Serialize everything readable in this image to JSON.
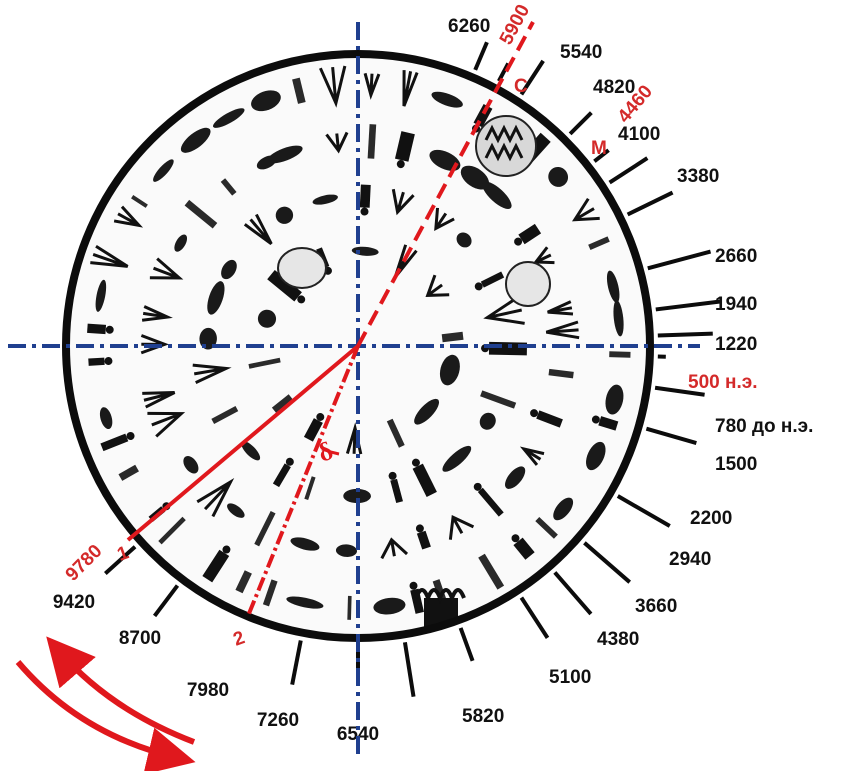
{
  "colors": {
    "ring": "#0c0c0c",
    "axis_blue": "#1f3f8f",
    "accent_red": "#e0181d",
    "label_red": "#d42a2a",
    "label_black": "#111111"
  },
  "center_symbol": "δ",
  "dial_labels": [
    {
      "text": "6260",
      "color": "black"
    },
    {
      "text": "5900",
      "color": "red"
    },
    {
      "text": "5540",
      "color": "black"
    },
    {
      "text": "4820",
      "color": "black"
    },
    {
      "text": "4460",
      "color": "red"
    },
    {
      "text": "4100",
      "color": "black"
    },
    {
      "text": "3380",
      "color": "black"
    },
    {
      "text": "2660",
      "color": "black"
    },
    {
      "text": "1940",
      "color": "black"
    },
    {
      "text": "1220",
      "color": "black"
    },
    {
      "text": "500 н.э.",
      "color": "red"
    },
    {
      "text": "780 до н.э.",
      "color": "black"
    },
    {
      "text": "1500",
      "color": "black"
    },
    {
      "text": "2200",
      "color": "black"
    },
    {
      "text": "2940",
      "color": "black"
    },
    {
      "text": "3660",
      "color": "black"
    },
    {
      "text": "4380",
      "color": "black"
    },
    {
      "text": "5100",
      "color": "black"
    },
    {
      "text": "5820",
      "color": "black"
    },
    {
      "text": "6540",
      "color": "black"
    },
    {
      "text": "7260",
      "color": "black"
    },
    {
      "text": "7980",
      "color": "black"
    },
    {
      "text": "8700",
      "color": "black"
    },
    {
      "text": "9420",
      "color": "black"
    },
    {
      "text": "9780",
      "color": "red"
    }
  ],
  "marker_labels": [
    {
      "text": "С",
      "color": "red"
    },
    {
      "text": "М",
      "color": "red"
    },
    {
      "text": "1",
      "color": "red"
    },
    {
      "text": "2",
      "color": "red"
    }
  ],
  "rotation_arrows": [
    "arrow-clockwise",
    "arrow-counterclockwise"
  ]
}
